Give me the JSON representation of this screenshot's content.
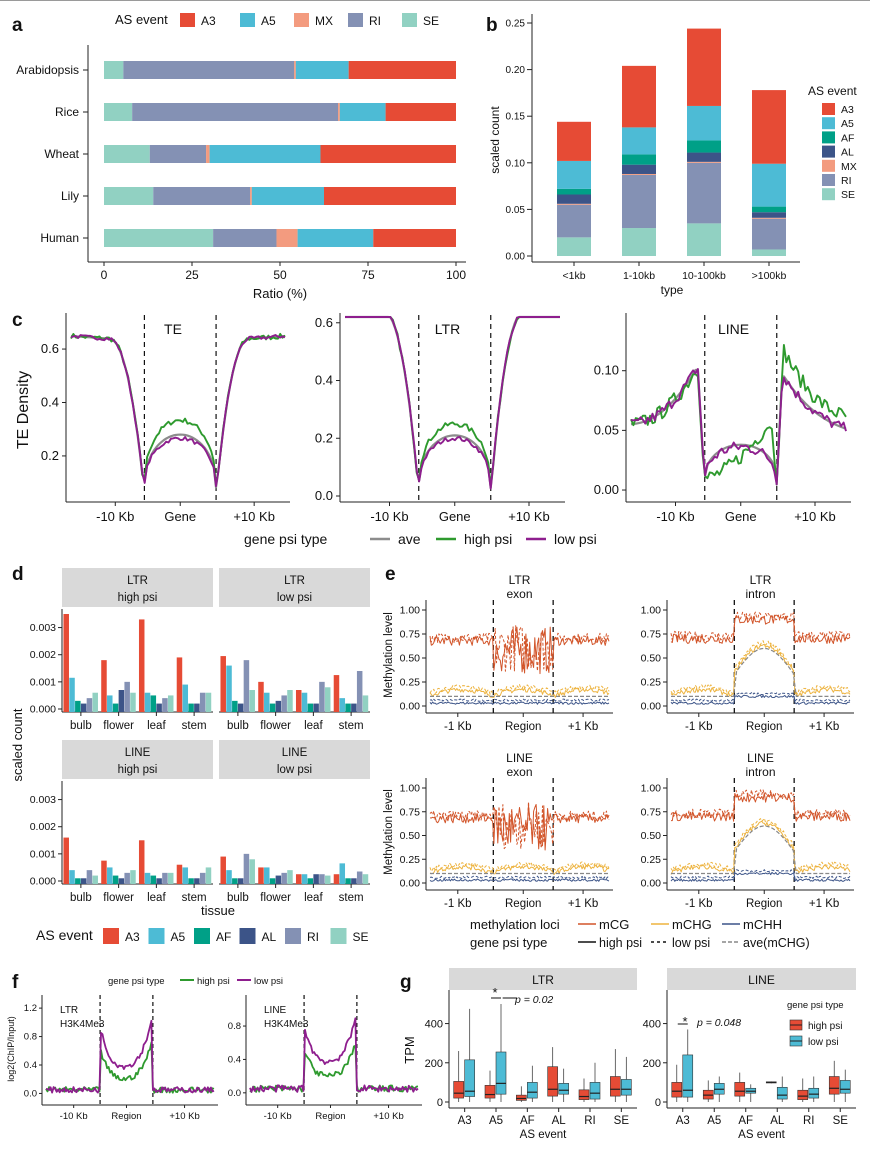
{
  "colors": {
    "A3": "#E64B35",
    "A5": "#4DBBD5",
    "AF": "#00A087",
    "AL": "#3C5488",
    "MX": "#F39B7F",
    "RI": "#8491B4",
    "SE": "#91D1C2",
    "ave": "#8C8C8C",
    "high": "#2E9A2E",
    "low": "#8E1E8E",
    "mCG": "#D2552A",
    "mCHG": "#EDB33F",
    "mCHH": "#3C5488",
    "facet_bg": "#D9D9D9"
  },
  "panels": {
    "a": {
      "letter": "a",
      "legend_title": "AS event",
      "legend_keys": [
        "A3",
        "A5",
        "MX",
        "RI",
        "SE"
      ],
      "xlabel": "Ratio (%)",
      "xticks": [
        0,
        25,
        50,
        75,
        100
      ],
      "order": [
        "SE",
        "RI",
        "MX",
        "A5",
        "A3"
      ],
      "rows": [
        {
          "species": "Arabidopsis",
          "SE": 5.5,
          "RI": 48.5,
          "MX": 0.5,
          "A5": 15,
          "A3": 30.5
        },
        {
          "species": "Rice",
          "SE": 8,
          "RI": 58.5,
          "MX": 0.5,
          "A5": 13,
          "A3": 20
        },
        {
          "species": "Wheat",
          "SE": 13,
          "RI": 16,
          "MX": 1,
          "A5": 31.5,
          "A3": 38.5
        },
        {
          "species": "Lily",
          "SE": 14,
          "RI": 27.5,
          "MX": 0.5,
          "A5": 20.5,
          "A3": 37.5
        },
        {
          "species": "Human",
          "SE": 31,
          "RI": 18,
          "MX": 6,
          "A5": 21.5,
          "A3": 23.5
        }
      ]
    },
    "b": {
      "letter": "b",
      "ylabel": "scaled count",
      "xlabel": "type",
      "yticks": [
        "0.00",
        "0.05",
        "0.10",
        "0.15",
        "0.20",
        "0.25"
      ],
      "legend_title": "AS event",
      "legend_keys": [
        "A3",
        "A5",
        "AF",
        "AL",
        "MX",
        "RI",
        "SE"
      ],
      "order": [
        "SE",
        "RI",
        "MX",
        "AL",
        "AF",
        "A5",
        "A3"
      ],
      "bars": [
        {
          "type": "<1kb",
          "SE": 0.02,
          "RI": 0.035,
          "MX": 0.001,
          "AL": 0.01,
          "AF": 0.006,
          "A5": 0.03,
          "A3": 0.042
        },
        {
          "type": "1-10kb",
          "SE": 0.03,
          "RI": 0.057,
          "MX": 0.001,
          "AL": 0.01,
          "AF": 0.011,
          "A5": 0.029,
          "A3": 0.066
        },
        {
          "type": "10-100kb",
          "SE": 0.035,
          "RI": 0.065,
          "MX": 0.001,
          "AL": 0.01,
          "AF": 0.013,
          "A5": 0.037,
          "A3": 0.083
        },
        {
          "type": ">100kb",
          "SE": 0.007,
          "RI": 0.033,
          "MX": 0.001,
          "AL": 0.006,
          "AF": 0.006,
          "A5": 0.046,
          "A3": 0.079
        }
      ]
    },
    "c": {
      "letter": "c",
      "ylabel": "TE Density",
      "xticks": [
        "-10 Kb",
        "Gene",
        "+10 Kb"
      ],
      "legend_title": "gene psi type",
      "legend_items": [
        {
          "key": "ave",
          "label": "ave"
        },
        {
          "key": "high",
          "label": "high psi"
        },
        {
          "key": "low",
          "label": "low psi"
        }
      ],
      "facets": [
        {
          "name": "TE",
          "ymin": 0.05,
          "ymax": 0.72,
          "yticks": [
            "0.2",
            "0.4",
            "0.6"
          ],
          "yvals": [
            0.2,
            0.4,
            0.6
          ]
        },
        {
          "name": "LTR",
          "ymin": 0.0,
          "ymax": 0.62,
          "yticks": [
            "0.0",
            "0.2",
            "0.4",
            "0.6"
          ],
          "yvals": [
            0.0,
            0.2,
            0.4,
            0.6
          ]
        },
        {
          "name": "LINE",
          "ymin": -0.005,
          "ymax": 0.145,
          "yticks": [
            "0.00",
            "0.05",
            "0.10"
          ],
          "yvals": [
            0.0,
            0.05,
            0.1
          ]
        }
      ]
    },
    "d": {
      "letter": "d",
      "ylabel": "scaled count",
      "xlabel": "tissue",
      "yticks": [
        "0.000",
        "0.001",
        "0.002",
        "0.003"
      ],
      "tissues": [
        "bulb",
        "flower",
        "leaf",
        "stem"
      ],
      "events": [
        "A3",
        "A5",
        "AF",
        "AL",
        "RI",
        "SE"
      ],
      "legend_title": "AS event",
      "legend_keys": [
        "A3",
        "A5",
        "AF",
        "AL",
        "RI",
        "SE"
      ],
      "facets": [
        {
          "strip": [
            "LTR",
            "high psi"
          ],
          "values": [
            [
              0.0035,
              0.00115,
              0.0003,
              0.0002,
              0.0004,
              0.0006
            ],
            [
              0.0018,
              0.0005,
              0.0002,
              0.0007,
              0.001,
              0.0006
            ],
            [
              0.0033,
              0.0006,
              0.0005,
              0.0002,
              0.0004,
              0.0005
            ],
            [
              0.0019,
              0.0009,
              0.0002,
              0.0002,
              0.0006,
              0.0006
            ]
          ]
        },
        {
          "strip": [
            "LTR",
            "low psi"
          ],
          "values": [
            [
              0.00195,
              0.0016,
              0.0003,
              0.0002,
              0.0018,
              0.0007
            ],
            [
              0.001,
              0.0006,
              0.0002,
              0.0003,
              0.0005,
              0.0007
            ],
            [
              0.0007,
              0.0006,
              0.0002,
              0.0002,
              0.001,
              0.0008
            ],
            [
              0.00125,
              0.0004,
              0.0002,
              0.0002,
              0.0014,
              0.0005
            ]
          ]
        },
        {
          "strip": [
            "LINE",
            "high psi"
          ],
          "values": [
            [
              0.0016,
              0.0004,
              0.0001,
              0.0001,
              0.0004,
              0.0002
            ],
            [
              0.00075,
              0.0005,
              0.0002,
              0.0001,
              0.0003,
              0.0004
            ],
            [
              0.0015,
              0.0003,
              0.0002,
              0.0001,
              0.0003,
              0.0003
            ],
            [
              0.0006,
              0.0005,
              0.0001,
              0.0001,
              0.0003,
              0.0005
            ]
          ]
        },
        {
          "strip": [
            "LINE",
            "low psi"
          ],
          "values": [
            [
              0.0009,
              0.0004,
              0.0001,
              0.0001,
              0.001,
              0.0008
            ],
            [
              0.0005,
              0.0005,
              0.0001,
              0.0002,
              0.0003,
              0.0004
            ],
            [
              0.00025,
              0.00025,
              0.0001,
              0.00025,
              0.00025,
              0.0002
            ],
            [
              0.00025,
              0.00065,
              0.0001,
              0.0001,
              0.00035,
              0.00025
            ]
          ]
        }
      ]
    },
    "e": {
      "letter": "e",
      "ylabel": "Methylation level",
      "yticks": [
        "0.00",
        "0.25",
        "0.50",
        "0.75",
        "1.00"
      ],
      "xticks": [
        "-1 Kb",
        "Region",
        "+1 Kb"
      ],
      "facets": [
        {
          "title": [
            "LTR",
            "exon"
          ]
        },
        {
          "title": [
            "LTR",
            "intron"
          ]
        },
        {
          "title": [
            "LINE",
            "exon"
          ]
        },
        {
          "title": [
            "LINE",
            "intron"
          ]
        }
      ],
      "legend": {
        "loci_title": "methylation loci",
        "loci": [
          {
            "key": "mCG",
            "label": "mCG"
          },
          {
            "key": "mCHG",
            "label": "mCHG"
          },
          {
            "key": "mCHH",
            "label": "mCHH"
          }
        ],
        "psi_title": "gene psi type",
        "psi": [
          "high psi",
          "low psi",
          "ave(mCHG)"
        ]
      }
    },
    "f": {
      "letter": "f",
      "ylabel": "log2(ChIP/Input)",
      "legend_title": "gene psi type",
      "legend_items": [
        "high psi",
        "low psi"
      ],
      "xticks": [
        "-10 Kb",
        "Region",
        "+10 Kb"
      ],
      "yticks": [
        "0.0",
        "0.4",
        "0.8",
        "1.2"
      ],
      "facets": [
        {
          "label": [
            "LTR",
            "H3K4Me3"
          ],
          "ymax": 1.3
        },
        {
          "label": [
            "LINE",
            "H3K4Me3"
          ],
          "ymax": 1.1
        }
      ]
    },
    "g": {
      "letter": "g",
      "ylabel": "TPM",
      "xlabel": "AS event",
      "events": [
        "A3",
        "A5",
        "AF",
        "AL",
        "RI",
        "SE"
      ],
      "yticks": [
        "0",
        "200",
        "400"
      ],
      "legend_title": "gene psi type",
      "legend_items": [
        {
          "key": "high",
          "label": "high psi"
        },
        {
          "key": "low",
          "label": "low psi"
        }
      ],
      "facets": [
        {
          "strip": "LTR",
          "star": "*",
          "p": "p = 0.02",
          "boxes": [
            [
              [
                0,
                20,
                45,
                105,
                260
              ],
              [
                0,
                28,
                55,
                215,
                475
              ]
            ],
            [
              [
                0,
                20,
                38,
                85,
                160
              ],
              [
                0,
                40,
                95,
                255,
                500
              ]
            ],
            [
              [
                0,
                8,
                18,
                35,
                80
              ],
              [
                0,
                20,
                50,
                100,
                185
              ]
            ],
            [
              [
                0,
                30,
                65,
                180,
                280
              ],
              [
                0,
                40,
                60,
                95,
                170
              ]
            ],
            [
              [
                0,
                12,
                28,
                62,
                120
              ],
              [
                0,
                15,
                45,
                100,
                200
              ]
            ],
            [
              [
                0,
                30,
                65,
                130,
                270
              ],
              [
                0,
                35,
                65,
                115,
                230
              ]
            ]
          ]
        },
        {
          "strip": "LINE",
          "star": "*",
          "p": "p = 0.048",
          "boxes": [
            [
              [
                0,
                25,
                55,
                100,
                190
              ],
              [
                0,
                25,
                60,
                240,
                370
              ]
            ],
            [
              [
                0,
                15,
                35,
                60,
                110
              ],
              [
                0,
                40,
                65,
                95,
                130
              ]
            ],
            [
              [
                0,
                30,
                55,
                100,
                150
              ],
              [
                0,
                45,
                55,
                70,
                90
              ]
            ],
            [
              [
                95,
                97,
                100,
                103,
                105
              ],
              [
                0,
                15,
                35,
                75,
                130
              ]
            ],
            [
              [
                0,
                12,
                30,
                60,
                120
              ],
              [
                0,
                20,
                40,
                70,
                130
              ]
            ],
            [
              [
                0,
                40,
                70,
                130,
                210
              ],
              [
                0,
                45,
                65,
                110,
                165
              ]
            ]
          ]
        }
      ]
    }
  },
  "chart_data": [
    {
      "type": "bar",
      "title": "",
      "orientation": "horizontal",
      "stacked": true,
      "categories": [
        "Arabidopsis",
        "Rice",
        "Wheat",
        "Lily",
        "Human"
      ],
      "series": [
        {
          "name": "SE",
          "values": [
            5.5,
            8,
            13,
            14,
            31
          ]
        },
        {
          "name": "RI",
          "values": [
            48.5,
            58.5,
            16,
            27.5,
            18
          ]
        },
        {
          "name": "MX",
          "values": [
            0.5,
            0.5,
            1,
            0.5,
            6
          ]
        },
        {
          "name": "A5",
          "values": [
            15,
            13,
            31.5,
            20.5,
            21.5
          ]
        },
        {
          "name": "A3",
          "values": [
            30.5,
            20,
            38.5,
            37.5,
            23.5
          ]
        }
      ],
      "xlabel": "Ratio (%)",
      "xlim": [
        0,
        100
      ],
      "legend": "top"
    },
    {
      "type": "bar",
      "title": "",
      "stacked": true,
      "categories": [
        "<1kb",
        "1-10kb",
        "10-100kb",
        ">100kb"
      ],
      "series": [
        {
          "name": "SE",
          "values": [
            0.02,
            0.03,
            0.035,
            0.007
          ]
        },
        {
          "name": "RI",
          "values": [
            0.035,
            0.057,
            0.065,
            0.033
          ]
        },
        {
          "name": "MX",
          "values": [
            0.001,
            0.001,
            0.001,
            0.001
          ]
        },
        {
          "name": "AL",
          "values": [
            0.01,
            0.01,
            0.01,
            0.006
          ]
        },
        {
          "name": "AF",
          "values": [
            0.006,
            0.011,
            0.013,
            0.006
          ]
        },
        {
          "name": "A5",
          "values": [
            0.03,
            0.029,
            0.037,
            0.046
          ]
        },
        {
          "name": "A3",
          "values": [
            0.042,
            0.066,
            0.083,
            0.079
          ]
        }
      ],
      "xlabel": "type",
      "ylabel": "scaled count",
      "ylim": [
        0,
        0.25
      ],
      "legend": "right"
    },
    {
      "type": "line",
      "title": "",
      "ylabel": "TE Density",
      "facets": [
        "TE",
        "LTR",
        "LINE"
      ],
      "series": [
        "ave",
        "high psi",
        "low psi"
      ],
      "legend": "bottom"
    },
    {
      "type": "bar",
      "title": "",
      "xlabel": "tissue",
      "ylabel": "scaled count",
      "ylim": [
        0,
        0.0035
      ],
      "categories": [
        "bulb",
        "flower",
        "leaf",
        "stem"
      ],
      "legend": "bottom"
    },
    {
      "type": "line",
      "title": "",
      "ylabel": "Methylation level",
      "ylim": [
        0,
        1
      ],
      "facets": [
        "LTR exon",
        "LTR intron",
        "LINE exon",
        "LINE intron"
      ]
    },
    {
      "type": "line",
      "title": "",
      "ylabel": "log2(ChIP/Input)",
      "facets": [
        "LTR H3K4Me3",
        "LINE H3K4Me3"
      ],
      "series": [
        "high psi",
        "low psi"
      ],
      "legend": "top"
    },
    {
      "type": "box",
      "title": "",
      "xlabel": "AS event",
      "ylabel": "TPM",
      "categories": [
        "A3",
        "A5",
        "AF",
        "AL",
        "RI",
        "SE"
      ],
      "facets": [
        "LTR",
        "LINE"
      ],
      "series": [
        "high psi",
        "low psi"
      ],
      "annotations": [
        "p = 0.02",
        "p = 0.048"
      ],
      "legend": "right"
    }
  ]
}
